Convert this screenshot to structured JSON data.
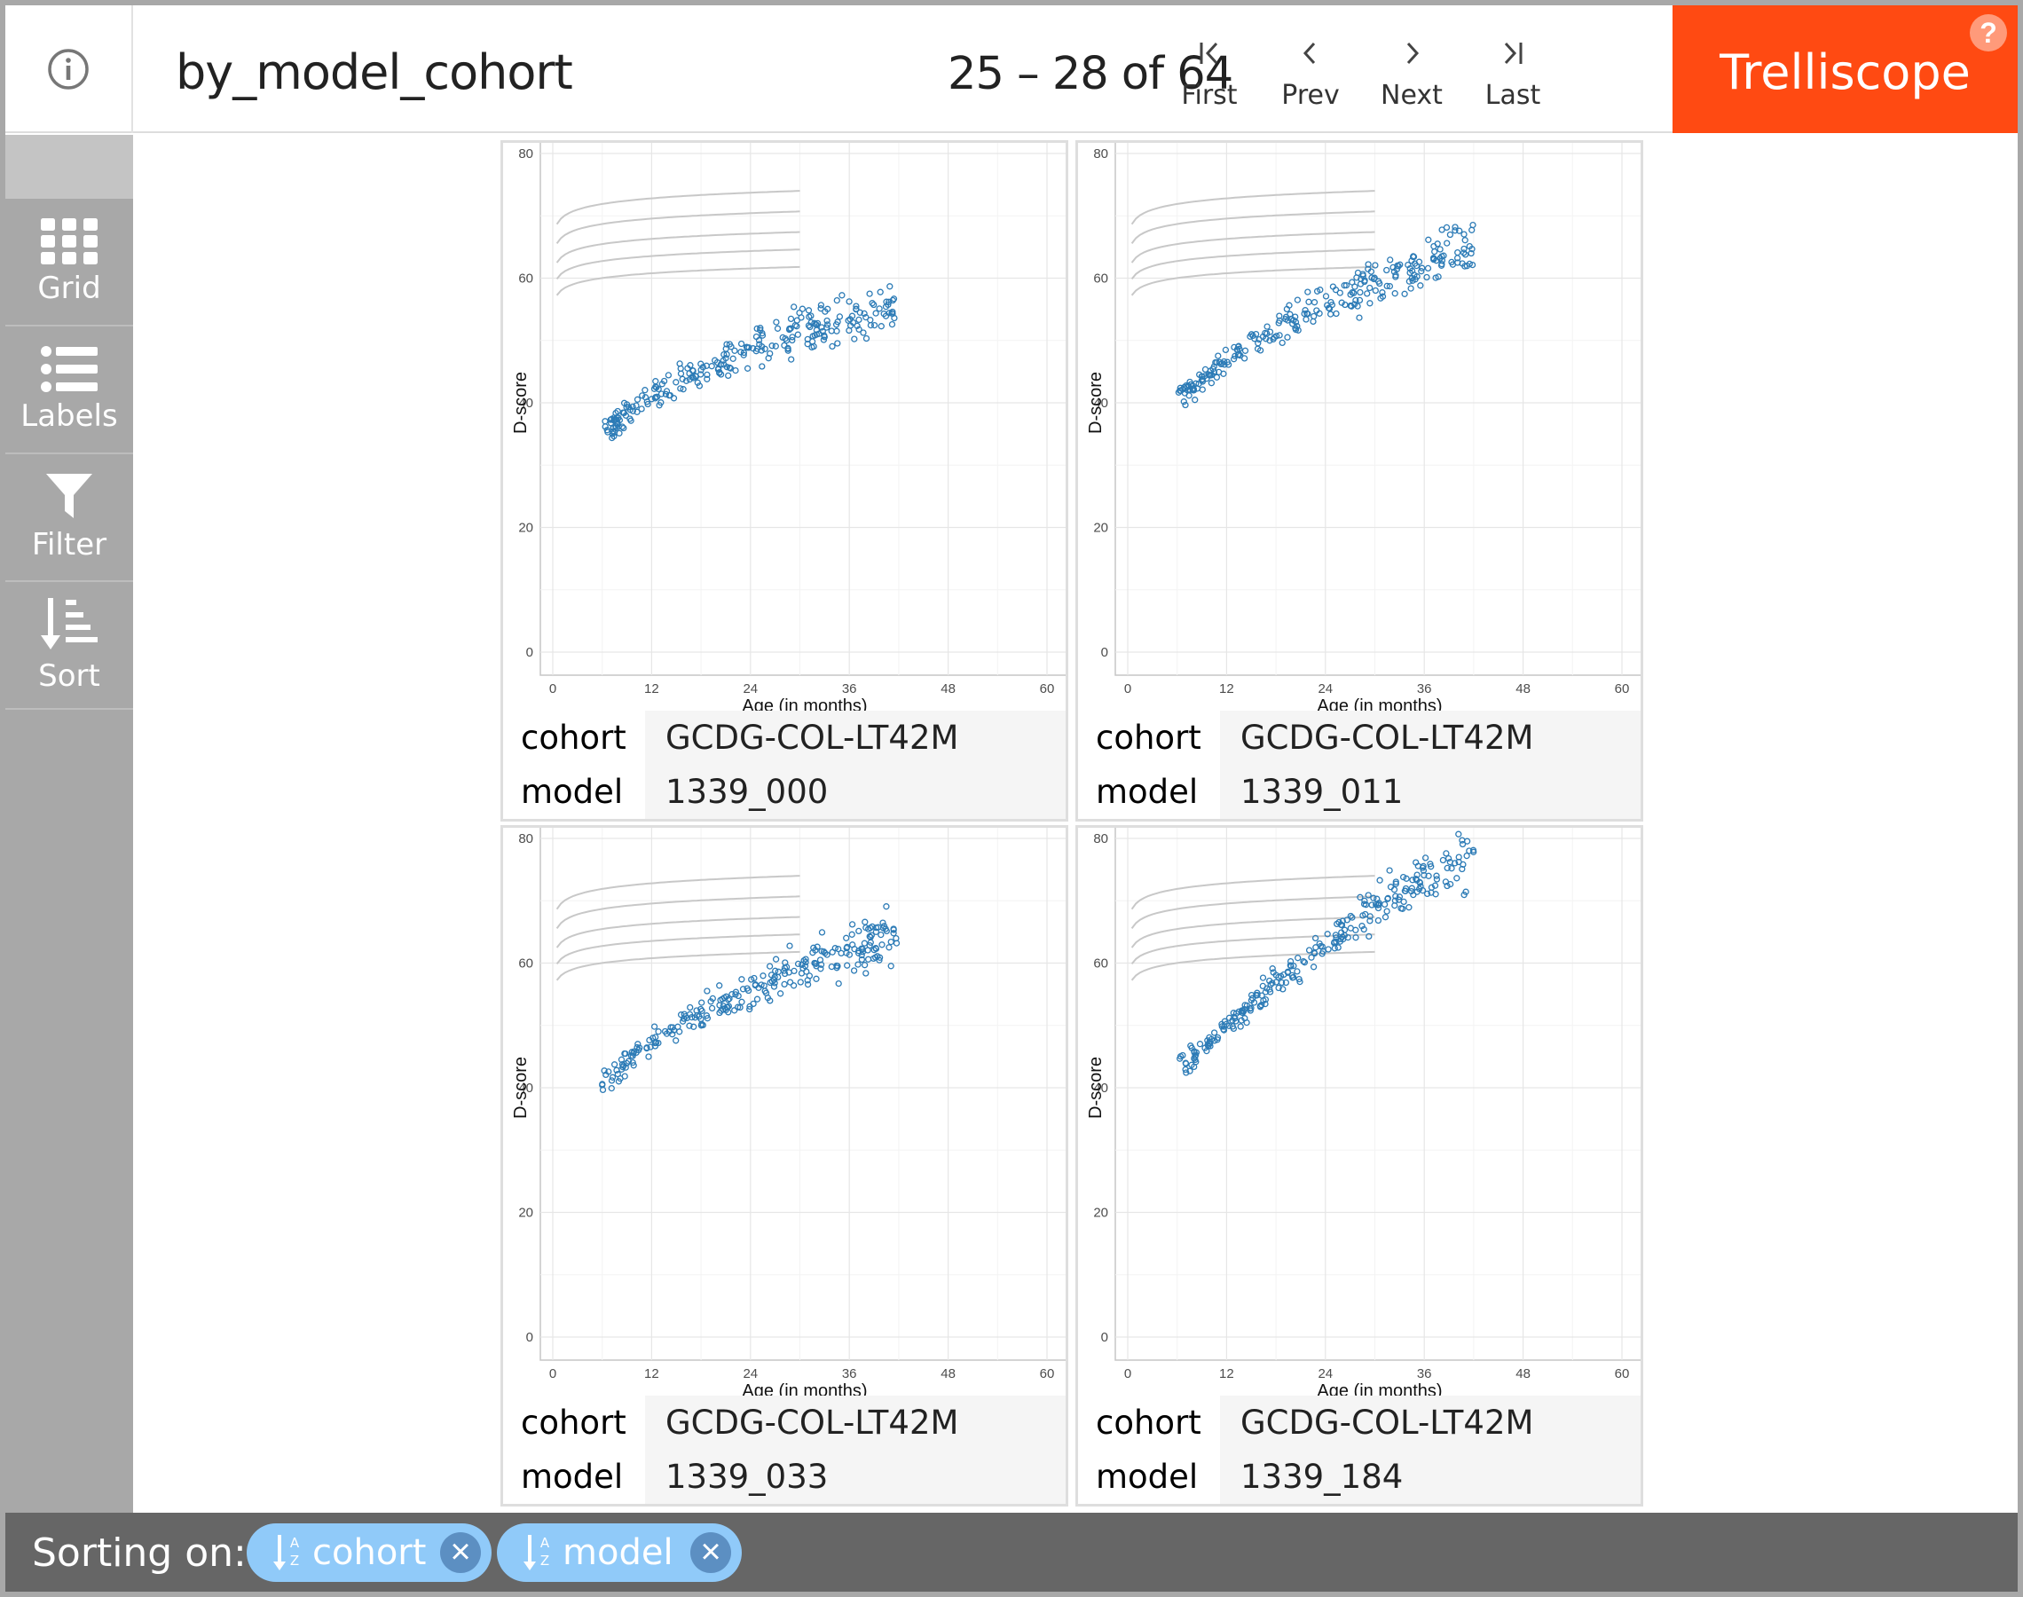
{
  "header": {
    "title": "by_model_cohort",
    "page_info": "25 – 28 of 64",
    "nav": [
      {
        "id": "first",
        "label": "First",
        "icon": "first-page-icon"
      },
      {
        "id": "prev",
        "label": "Prev",
        "icon": "chevron-left-icon"
      },
      {
        "id": "next",
        "label": "Next",
        "icon": "chevron-right-icon"
      },
      {
        "id": "last",
        "label": "Last",
        "icon": "last-page-icon"
      }
    ],
    "brand": "Trelliscope",
    "help": "?"
  },
  "sidebar": {
    "items": [
      {
        "label": "Grid",
        "icon": "grid-icon"
      },
      {
        "label": "Labels",
        "icon": "list-icon"
      },
      {
        "label": "Filter",
        "icon": "filter-icon"
      },
      {
        "label": "Sort",
        "icon": "sort-icon"
      }
    ]
  },
  "panels": [
    {
      "labels": [
        {
          "name": "cohort",
          "value": "GCDG-COL-LT42M"
        },
        {
          "name": "model",
          "value": "1339_000"
        }
      ]
    },
    {
      "labels": [
        {
          "name": "cohort",
          "value": "GCDG-COL-LT42M"
        },
        {
          "name": "model",
          "value": "1339_011"
        }
      ]
    },
    {
      "labels": [
        {
          "name": "cohort",
          "value": "GCDG-COL-LT42M"
        },
        {
          "name": "model",
          "value": "1339_033"
        }
      ]
    },
    {
      "labels": [
        {
          "name": "cohort",
          "value": "GCDG-COL-LT42M"
        },
        {
          "name": "model",
          "value": "1339_184"
        }
      ]
    }
  ],
  "footer": {
    "sort_label": "Sorting on:",
    "sorts": [
      {
        "label": "cohort",
        "remove": "×"
      },
      {
        "label": "model",
        "remove": "×"
      }
    ]
  },
  "colors": {
    "brand": "#ff4a12",
    "point": "#2c7bb6",
    "reference_line": "#c8c8c8",
    "sidebar": "#a8a8a8",
    "pill": "#90caf9"
  },
  "chart_data": [
    {
      "type": "scatter",
      "panel": "1339_000",
      "xlabel": "Age (in months)",
      "ylabel": "D-score",
      "xlim": [
        0,
        60
      ],
      "ylim": [
        0,
        80
      ],
      "xticks": [
        0,
        12,
        24,
        36,
        48,
        60
      ],
      "yticks": [
        0,
        20,
        40,
        60,
        80
      ],
      "grid": true,
      "reference_curves": {
        "x_range": [
          0.5,
          30
        ],
        "values_at_30": [
          74,
          71,
          68,
          65.5,
          63
        ]
      },
      "series": [
        {
          "trend": [
            [
              7,
              36
            ],
            [
              12,
              41.5
            ],
            [
              18,
              45
            ],
            [
              24,
              48.5
            ],
            [
              30,
              51.5
            ],
            [
              36,
              53.5
            ],
            [
              42,
              55.5
            ]
          ],
          "x_range": [
            6,
            42
          ]
        }
      ]
    },
    {
      "type": "scatter",
      "panel": "1339_011",
      "xlabel": "Age (in months)",
      "ylabel": "D-score",
      "xlim": [
        0,
        60
      ],
      "ylim": [
        0,
        80
      ],
      "xticks": [
        0,
        12,
        24,
        36,
        48,
        60
      ],
      "yticks": [
        0,
        20,
        40,
        60,
        80
      ],
      "grid": true,
      "reference_curves": {
        "x_range": [
          0.5,
          30
        ],
        "values_at_30": [
          74,
          71,
          68,
          65.5,
          63
        ]
      },
      "series": [
        {
          "trend": [
            [
              7,
              41.5
            ],
            [
              12,
              47
            ],
            [
              18,
              52
            ],
            [
              24,
              56
            ],
            [
              30,
              59
            ],
            [
              36,
              62.5
            ],
            [
              42,
              65.5
            ]
          ],
          "x_range": [
            6,
            42
          ]
        }
      ]
    },
    {
      "type": "scatter",
      "panel": "1339_033",
      "xlabel": "Age (in months)",
      "ylabel": "D-score",
      "xlim": [
        0,
        60
      ],
      "ylim": [
        0,
        80
      ],
      "xticks": [
        0,
        12,
        24,
        36,
        48,
        60
      ],
      "yticks": [
        0,
        20,
        40,
        60,
        80
      ],
      "grid": true,
      "reference_curves": {
        "x_range": [
          0.5,
          30
        ],
        "values_at_30": [
          74,
          71,
          68,
          65.5,
          63
        ]
      },
      "series": [
        {
          "trend": [
            [
              6,
              40.5
            ],
            [
              12,
              47.5
            ],
            [
              18,
              52
            ],
            [
              24,
              55.5
            ],
            [
              30,
              59.5
            ],
            [
              36,
              62
            ],
            [
              42,
              65
            ]
          ],
          "x_range": [
            6,
            42
          ]
        }
      ]
    },
    {
      "type": "scatter",
      "panel": "1339_184",
      "xlabel": "Age (in months)",
      "ylabel": "D-score",
      "xlim": [
        0,
        60
      ],
      "ylim": [
        0,
        80
      ],
      "xticks": [
        0,
        12,
        24,
        36,
        48,
        60
      ],
      "yticks": [
        0,
        20,
        40,
        60,
        80
      ],
      "grid": true,
      "reference_curves": {
        "x_range": [
          0.5,
          30
        ],
        "values_at_30": [
          74,
          71,
          68,
          65.5,
          63
        ]
      },
      "series": [
        {
          "trend": [
            [
              7,
              44
            ],
            [
              12,
              50
            ],
            [
              18,
              57
            ],
            [
              24,
              63
            ],
            [
              30,
              69
            ],
            [
              36,
              73.5
            ],
            [
              42,
              77
            ]
          ],
          "x_range": [
            6,
            42
          ]
        }
      ]
    }
  ]
}
